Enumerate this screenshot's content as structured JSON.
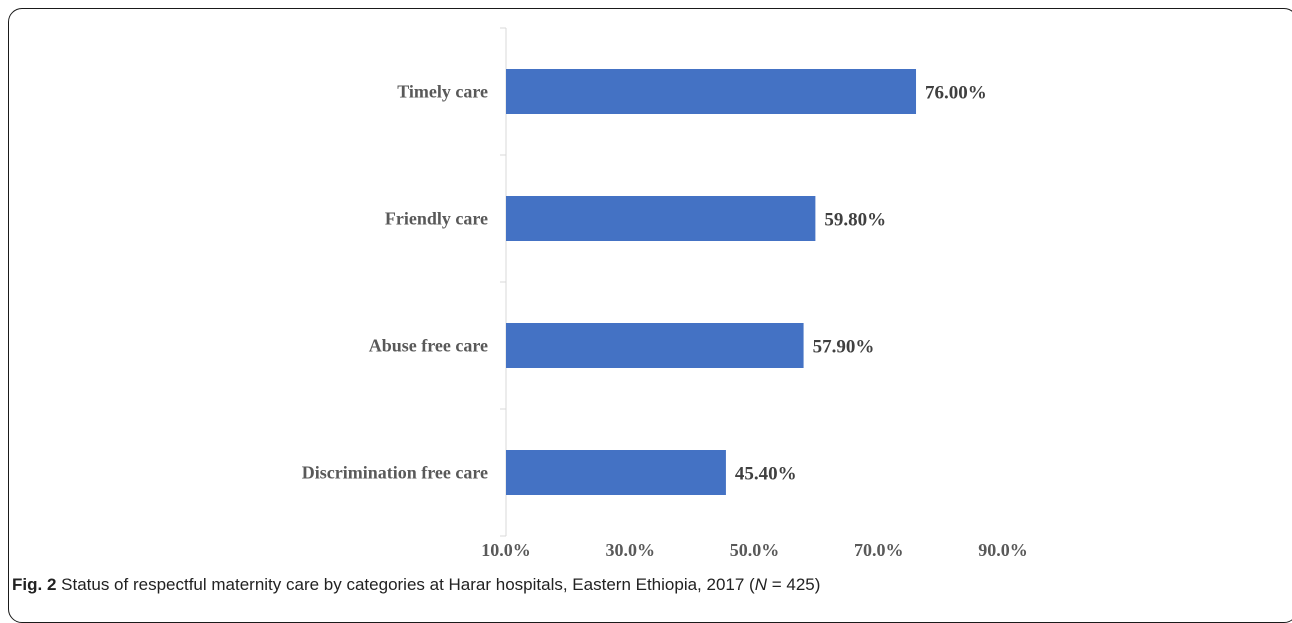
{
  "caption": {
    "fig_label": "Fig. 2",
    "text_before_n": " Status of respectful maternity care by categories at Harar hospitals, Eastern Ethiopia, 2017 (",
    "n_symbol": "N",
    "text_after_n": " = 425)"
  },
  "chart_data": {
    "type": "bar",
    "orientation": "horizontal",
    "categories": [
      "Timely care",
      "Friendly care",
      "Abuse free care",
      "Discrimination free care"
    ],
    "values": [
      76.0,
      59.8,
      57.9,
      45.4
    ],
    "value_labels": [
      "76.00%",
      "59.80%",
      "57.90%",
      "45.40%"
    ],
    "x_ticks": [
      10,
      30,
      50,
      70,
      90
    ],
    "x_tick_labels": [
      "10.0%",
      "30.0%",
      "50.0%",
      "70.0%",
      "90.0%"
    ],
    "xlim": [
      10,
      90
    ],
    "bar_color": "#4472C4",
    "grid": false,
    "legend": "none"
  }
}
